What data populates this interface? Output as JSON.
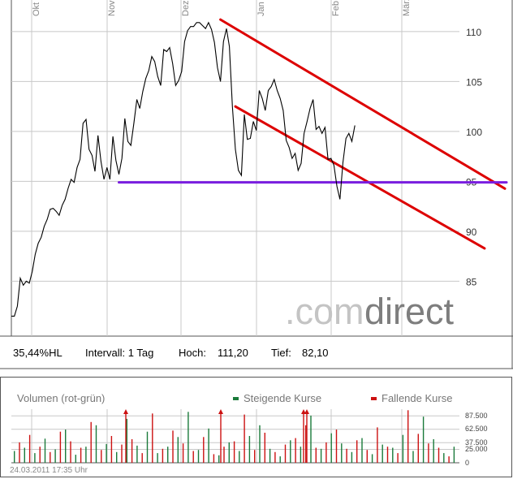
{
  "colors": {
    "frame": "#555555",
    "grid": "#c8c8c8",
    "price": "#000000",
    "channel": "#dd0000",
    "support": "#7a1ee0",
    "rising": "#1a7a3a",
    "falling": "#cc1111",
    "brand_gray": "#c4c4c4",
    "brand_dark": "#7e7e7e",
    "muted_text": "#888888"
  },
  "price_chart": {
    "brand_light": ".com",
    "brand_dark": "direct",
    "info": {
      "metric": "35,44%HL",
      "interval": "Intervall: 1 Tag",
      "high_label": "Hoch:",
      "high_value": "111,20",
      "low_label": "Tief:",
      "low_value": "82,10"
    }
  },
  "volume_chart": {
    "title": "Volumen (rot-grün)",
    "legend": [
      {
        "name": "Steigende Kurse",
        "color": "#1a7a3a"
      },
      {
        "name": "Fallende Kurse",
        "color": "#cc1111"
      }
    ],
    "y_ticks": [
      "87.500",
      "62.500",
      "37.500",
      "25.000",
      "0"
    ],
    "timestamp": "24.03.2011 17:35 Uhr"
  },
  "chart_data": [
    {
      "type": "line",
      "x_tick_labels": [
        "Okt",
        "Nov",
        "Dez",
        "Jan",
        "Feb",
        "März"
      ],
      "y_ticks": [
        85,
        90,
        95,
        100,
        105,
        110
      ],
      "ylim": [
        79.5,
        113
      ],
      "x_range": [
        0,
        150
      ],
      "grid": true,
      "series": [
        {
          "values": [
            81.5,
            81.5,
            82.5,
            85.3,
            84.6,
            85.0,
            84.8,
            86.0,
            87.7,
            88.8,
            89.4,
            90.5,
            91.2,
            92.2,
            92.3,
            92.0,
            91.6,
            92.6,
            93.2,
            94.3,
            95.2,
            94.9,
            96.4,
            97.2,
            100.8,
            101.2,
            98.2,
            97.6,
            96.0,
            99.6,
            97.0,
            95.2,
            96.4,
            95.2,
            99.5,
            97.1,
            95.7,
            97.3,
            101.3,
            99.0,
            98.6,
            100.8,
            103.2,
            102.3,
            104.0,
            105.3,
            106.1,
            107.5,
            107.0,
            105.5,
            104.6,
            108.2,
            108.0,
            108.4,
            106.8,
            104.6,
            105.1,
            106.0,
            109.0,
            110.1,
            110.5,
            110.5,
            110.9,
            110.9,
            110.6,
            110.3,
            110.9,
            110.2,
            108.9,
            106.4,
            105.0,
            109.0,
            110.3,
            108.5,
            102.5,
            98.2,
            96.1,
            95.6,
            101.7,
            99.2,
            99.3,
            101.0,
            100.1,
            104.1,
            103.3,
            102.1,
            104.1,
            104.5,
            105.2,
            104.1,
            103.3,
            102.1,
            99.1,
            98.4,
            97.3,
            97.8,
            96.1,
            96.8,
            99.8,
            101.0,
            102.3,
            103.2,
            100.2,
            100.5,
            99.8,
            100.4,
            97.2,
            97.3,
            96.6,
            94.5,
            93.2,
            96.9,
            99.3,
            99.8,
            99.0,
            100.6
          ],
          "color": "#000000"
        }
      ],
      "annotations": {
        "channel_upper": {
          "from": [
            70,
            111.2
          ],
          "to": [
            150,
            97.2
          ]
        },
        "channel_lower": {
          "from": [
            75,
            102.5
          ],
          "to": [
            147,
            90.4
          ]
        },
        "support_level": {
          "from": [
            36,
            94.9
          ],
          "to": [
            150,
            94.9
          ]
        }
      }
    },
    {
      "type": "bar",
      "ylim": [
        0,
        100000
      ],
      "up_color": "#1a7a3a",
      "down_color": "#cc1111",
      "up_values": [
        22000,
        28000,
        18000,
        45000,
        25000,
        62000,
        15000,
        30000,
        70000,
        35000,
        20000,
        82000,
        32000,
        58000,
        18000,
        30000,
        48000,
        95000,
        24000,
        64000,
        14000,
        38000,
        22000,
        50000,
        70000,
        26000,
        12000,
        42000,
        30000,
        88000,
        26000,
        55000,
        36000,
        20000,
        46000,
        16000,
        34000,
        28000,
        52000,
        22000,
        86000,
        44000,
        18000,
        30000
      ],
      "down_values": [
        38000,
        52000,
        30000,
        20000,
        58000,
        40000,
        28000,
        76000,
        24000,
        50000,
        34000,
        44000,
        18000,
        92000,
        26000,
        60000,
        36000,
        22000,
        48000,
        16000,
        30000,
        40000,
        90000,
        24000,
        56000,
        20000,
        34000,
        46000,
        70000,
        28000,
        38000,
        62000,
        26000,
        42000,
        24000,
        66000,
        30000,
        18000,
        98000,
        54000,
        36000,
        28000,
        12000
      ],
      "spike_markers": 4
    }
  ]
}
